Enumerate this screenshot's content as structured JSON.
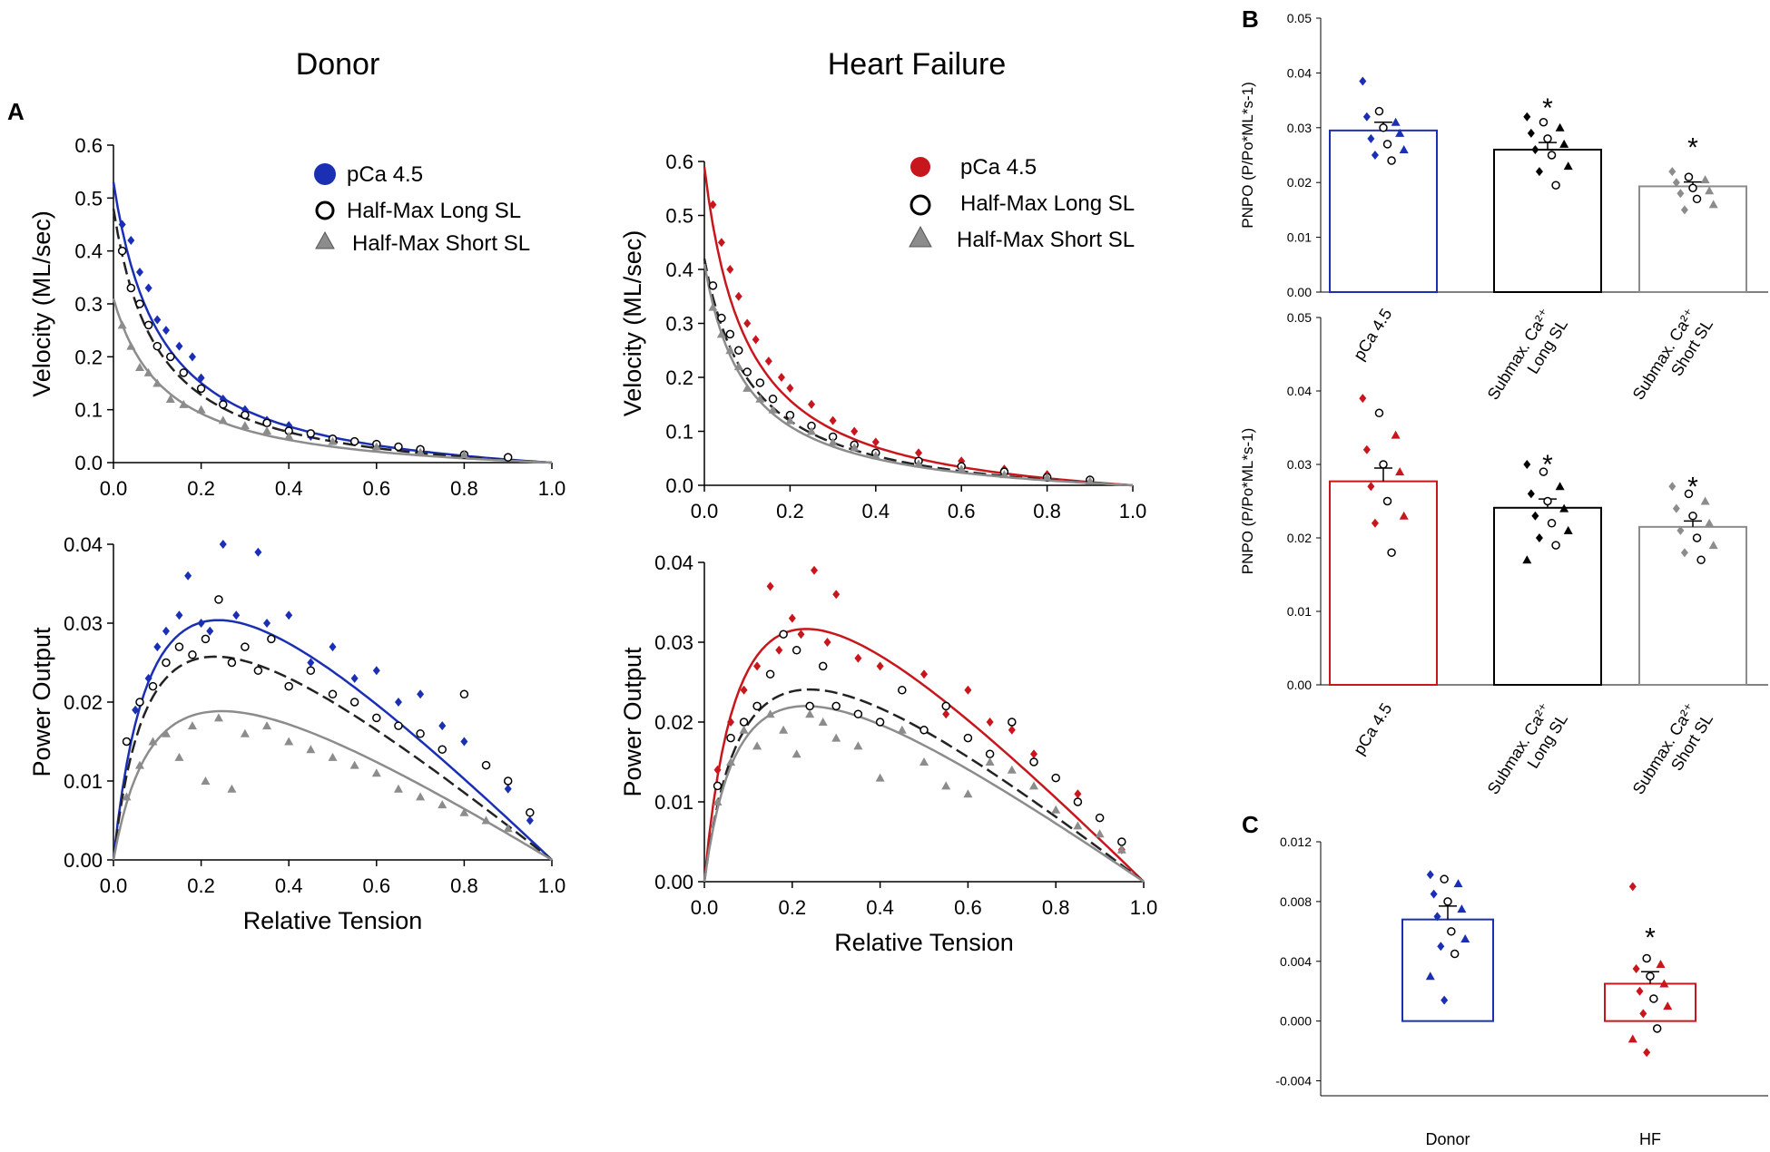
{
  "figure": {
    "col_titles": [
      "Donor",
      "Heart Failure"
    ],
    "panel_labels": [
      "A",
      "B",
      "C"
    ]
  },
  "colors": {
    "donor": "#1a2fb4",
    "hf": "#c8161d",
    "half_long": "#000000",
    "half_short": "#8c8c8c"
  },
  "chart_data": [
    {
      "id": "donor-velocity",
      "type": "scatter",
      "title": "Donor",
      "xlabel": "",
      "ylabel": "Velocity (ML/sec)",
      "xlim": [
        0,
        1
      ],
      "ylim": [
        0,
        0.6
      ],
      "xticks": [
        "0.0",
        "0.2",
        "0.4",
        "0.6",
        "0.8",
        "1.0"
      ],
      "yticks": [
        "0.0",
        "0.1",
        "0.2",
        "0.3",
        "0.4",
        "0.5",
        "0.6"
      ],
      "legend": [
        "pCa 4.5",
        "Half-Max Long SL",
        "Half-Max Short SL"
      ],
      "series": [
        {
          "name": "pCa 4.5",
          "color_key": "donor",
          "marker": "diamond",
          "fit": {
            "v0": 0.53,
            "a": 0.11
          },
          "x": [
            0.02,
            0.04,
            0.06,
            0.08,
            0.1,
            0.12,
            0.15,
            0.18,
            0.2,
            0.25,
            0.3,
            0.35,
            0.4,
            0.45,
            0.5,
            0.6,
            0.7,
            0.8,
            0.9
          ],
          "y": [
            0.45,
            0.42,
            0.36,
            0.33,
            0.27,
            0.25,
            0.22,
            0.2,
            0.16,
            0.12,
            0.1,
            0.08,
            0.07,
            0.05,
            0.045,
            0.035,
            0.025,
            0.015,
            0.01
          ]
        },
        {
          "name": "Half-Max Long SL",
          "color_key": "half_long",
          "marker": "circle",
          "fit": {
            "v0": 0.48,
            "a": 0.1
          },
          "x": [
            0.02,
            0.04,
            0.06,
            0.08,
            0.1,
            0.13,
            0.16,
            0.2,
            0.25,
            0.3,
            0.35,
            0.4,
            0.45,
            0.5,
            0.55,
            0.6,
            0.65,
            0.7,
            0.8,
            0.9
          ],
          "y": [
            0.4,
            0.33,
            0.3,
            0.26,
            0.22,
            0.2,
            0.17,
            0.14,
            0.11,
            0.09,
            0.075,
            0.06,
            0.055,
            0.045,
            0.04,
            0.035,
            0.03,
            0.025,
            0.015,
            0.01
          ]
        },
        {
          "name": "Half-Max Short SL",
          "color_key": "half_short",
          "marker": "triangle",
          "fit": {
            "v0": 0.31,
            "a": 0.12
          },
          "x": [
            0.02,
            0.04,
            0.06,
            0.08,
            0.1,
            0.13,
            0.16,
            0.2,
            0.25,
            0.3,
            0.35,
            0.4,
            0.5,
            0.6,
            0.7,
            0.8
          ],
          "y": [
            0.26,
            0.22,
            0.18,
            0.17,
            0.15,
            0.12,
            0.11,
            0.1,
            0.08,
            0.07,
            0.06,
            0.05,
            0.04,
            0.03,
            0.02,
            0.015
          ]
        }
      ]
    },
    {
      "id": "hf-velocity",
      "type": "scatter",
      "title": "Heart Failure",
      "xlabel": "",
      "ylabel": "Velocity (ML/sec)",
      "xlim": [
        0,
        1
      ],
      "ylim": [
        0,
        0.6
      ],
      "xticks": [
        "0.0",
        "0.2",
        "0.4",
        "0.6",
        "0.8",
        "1.0"
      ],
      "yticks": [
        "0.0",
        "0.1",
        "0.2",
        "0.3",
        "0.4",
        "0.5",
        "0.6"
      ],
      "legend": [
        "pCa 4.5",
        "Half-Max Long SL",
        "Half-Max Short SL"
      ],
      "series": [
        {
          "name": "pCa 4.5",
          "color_key": "hf",
          "marker": "diamond",
          "fit": {
            "v0": 0.59,
            "a": 0.1
          },
          "x": [
            0.02,
            0.04,
            0.06,
            0.08,
            0.1,
            0.12,
            0.15,
            0.18,
            0.2,
            0.25,
            0.3,
            0.35,
            0.4,
            0.5,
            0.6,
            0.7,
            0.8,
            0.9
          ],
          "y": [
            0.52,
            0.45,
            0.4,
            0.35,
            0.3,
            0.27,
            0.23,
            0.2,
            0.18,
            0.15,
            0.12,
            0.1,
            0.08,
            0.06,
            0.045,
            0.03,
            0.02,
            0.01
          ]
        },
        {
          "name": "Half-Max Long SL",
          "color_key": "half_long",
          "marker": "circle",
          "fit": {
            "v0": 0.42,
            "a": 0.11
          },
          "x": [
            0.02,
            0.04,
            0.06,
            0.08,
            0.1,
            0.13,
            0.16,
            0.2,
            0.25,
            0.3,
            0.35,
            0.4,
            0.5,
            0.6,
            0.7,
            0.8,
            0.9
          ],
          "y": [
            0.37,
            0.31,
            0.28,
            0.25,
            0.21,
            0.19,
            0.16,
            0.13,
            0.11,
            0.09,
            0.075,
            0.06,
            0.045,
            0.035,
            0.025,
            0.015,
            0.01
          ]
        },
        {
          "name": "Half-Max Short SL",
          "color_key": "half_short",
          "marker": "triangle",
          "fit": {
            "v0": 0.41,
            "a": 0.1
          },
          "x": [
            0.02,
            0.04,
            0.06,
            0.08,
            0.1,
            0.13,
            0.16,
            0.2,
            0.25,
            0.3,
            0.35,
            0.4,
            0.5,
            0.6,
            0.7,
            0.8,
            0.9
          ],
          "y": [
            0.33,
            0.28,
            0.25,
            0.22,
            0.18,
            0.16,
            0.14,
            0.12,
            0.1,
            0.08,
            0.07,
            0.055,
            0.04,
            0.03,
            0.02,
            0.015,
            0.008
          ]
        }
      ]
    },
    {
      "id": "donor-power",
      "type": "scatter",
      "title": "",
      "xlabel": "Relative Tension",
      "ylabel": "Power Output",
      "xlim": [
        0,
        1
      ],
      "ylim": [
        0,
        0.04
      ],
      "xticks": [
        "0.0",
        "0.2",
        "0.4",
        "0.6",
        "0.8",
        "1.0"
      ],
      "yticks": [
        "0.00",
        "0.01",
        "0.02",
        "0.03",
        "0.04"
      ],
      "series": [
        {
          "name": "pCa 4.5",
          "color_key": "donor",
          "marker": "diamond",
          "fit": {
            "v0": 0.53,
            "a": 0.11
          },
          "x": [
            0.05,
            0.08,
            0.1,
            0.12,
            0.15,
            0.17,
            0.2,
            0.22,
            0.25,
            0.28,
            0.3,
            0.33,
            0.35,
            0.4,
            0.45,
            0.5,
            0.55,
            0.6,
            0.65,
            0.7,
            0.75,
            0.8,
            0.85,
            0.9,
            0.95
          ],
          "y": [
            0.019,
            0.023,
            0.027,
            0.029,
            0.031,
            0.036,
            0.03,
            0.029,
            0.04,
            0.031,
            0.027,
            0.039,
            0.03,
            0.031,
            0.025,
            0.027,
            0.023,
            0.024,
            0.02,
            0.021,
            0.017,
            0.015,
            0.012,
            0.009,
            0.005
          ]
        },
        {
          "name": "Half-Max Long SL",
          "color_key": "half_long",
          "marker": "circle",
          "fit": {
            "v0": 0.48,
            "a": 0.1
          },
          "x": [
            0.03,
            0.06,
            0.09,
            0.12,
            0.15,
            0.18,
            0.21,
            0.24,
            0.27,
            0.3,
            0.33,
            0.36,
            0.4,
            0.45,
            0.5,
            0.55,
            0.6,
            0.65,
            0.7,
            0.75,
            0.8,
            0.85,
            0.9,
            0.95
          ],
          "y": [
            0.015,
            0.02,
            0.022,
            0.025,
            0.027,
            0.026,
            0.028,
            0.033,
            0.025,
            0.027,
            0.024,
            0.028,
            0.022,
            0.024,
            0.021,
            0.02,
            0.018,
            0.017,
            0.016,
            0.014,
            0.021,
            0.012,
            0.01,
            0.006
          ]
        },
        {
          "name": "Half-Max Short SL",
          "color_key": "half_short",
          "marker": "triangle",
          "fit": {
            "v0": 0.31,
            "a": 0.12
          },
          "x": [
            0.03,
            0.06,
            0.09,
            0.12,
            0.15,
            0.18,
            0.21,
            0.24,
            0.27,
            0.3,
            0.35,
            0.4,
            0.45,
            0.5,
            0.55,
            0.6,
            0.65,
            0.7,
            0.75,
            0.8,
            0.85,
            0.9
          ],
          "y": [
            0.008,
            0.012,
            0.015,
            0.016,
            0.013,
            0.017,
            0.01,
            0.018,
            0.009,
            0.016,
            0.017,
            0.015,
            0.014,
            0.013,
            0.012,
            0.011,
            0.009,
            0.008,
            0.007,
            0.006,
            0.005,
            0.004
          ]
        }
      ]
    },
    {
      "id": "hf-power",
      "type": "scatter",
      "title": "",
      "xlabel": "Relative Tension",
      "ylabel": "Power Output",
      "xlim": [
        0,
        1
      ],
      "ylim": [
        0,
        0.04
      ],
      "xticks": [
        "0.0",
        "0.2",
        "0.4",
        "0.6",
        "0.8",
        "1.0"
      ],
      "yticks": [
        "0.00",
        "0.01",
        "0.02",
        "0.03",
        "0.04"
      ],
      "series": [
        {
          "name": "pCa 4.5",
          "color_key": "hf",
          "marker": "diamond",
          "fit": {
            "v0": 0.59,
            "a": 0.1
          },
          "x": [
            0.03,
            0.06,
            0.09,
            0.12,
            0.15,
            0.17,
            0.2,
            0.22,
            0.25,
            0.28,
            0.3,
            0.35,
            0.4,
            0.45,
            0.5,
            0.55,
            0.6,
            0.65,
            0.7,
            0.75,
            0.8,
            0.85,
            0.9,
            0.95
          ],
          "y": [
            0.014,
            0.02,
            0.024,
            0.027,
            0.037,
            0.029,
            0.033,
            0.031,
            0.039,
            0.03,
            0.036,
            0.028,
            0.027,
            0.024,
            0.026,
            0.021,
            0.024,
            0.02,
            0.019,
            0.016,
            0.013,
            0.011,
            0.008,
            0.004
          ]
        },
        {
          "name": "Half-Max Long SL",
          "color_key": "half_long",
          "marker": "circle",
          "fit": {
            "v0": 0.42,
            "a": 0.11
          },
          "x": [
            0.03,
            0.06,
            0.09,
            0.12,
            0.15,
            0.18,
            0.21,
            0.24,
            0.27,
            0.3,
            0.35,
            0.4,
            0.45,
            0.5,
            0.55,
            0.6,
            0.65,
            0.7,
            0.75,
            0.8,
            0.85,
            0.9,
            0.95
          ],
          "y": [
            0.012,
            0.018,
            0.02,
            0.022,
            0.026,
            0.031,
            0.029,
            0.022,
            0.027,
            0.022,
            0.021,
            0.02,
            0.024,
            0.019,
            0.022,
            0.018,
            0.016,
            0.02,
            0.015,
            0.013,
            0.01,
            0.008,
            0.005
          ]
        },
        {
          "name": "Half-Max Short SL",
          "color_key": "half_short",
          "marker": "triangle",
          "fit": {
            "v0": 0.41,
            "a": 0.1
          },
          "x": [
            0.03,
            0.06,
            0.09,
            0.12,
            0.15,
            0.18,
            0.21,
            0.24,
            0.27,
            0.3,
            0.35,
            0.4,
            0.45,
            0.5,
            0.55,
            0.6,
            0.65,
            0.7,
            0.75,
            0.8,
            0.85,
            0.9,
            0.95
          ],
          "y": [
            0.01,
            0.015,
            0.019,
            0.017,
            0.021,
            0.019,
            0.016,
            0.021,
            0.02,
            0.018,
            0.017,
            0.013,
            0.019,
            0.015,
            0.012,
            0.011,
            0.015,
            0.014,
            0.012,
            0.009,
            0.007,
            0.006,
            0.004
          ]
        }
      ]
    },
    {
      "id": "pnpo-donor",
      "type": "bar",
      "ylabel": "PNPO (P/Po*ML*s-1)",
      "ylim": [
        0,
        0.05
      ],
      "yticks": [
        "0.00",
        "0.01",
        "0.02",
        "0.03",
        "0.04",
        "0.05"
      ],
      "categories": [
        "pCa 4.5",
        "Submax. Ca2+ Long SL",
        "Submax. Ca2+ Short SL"
      ],
      "category_lines": [
        [
          "pCa 4.5"
        ],
        [
          "Submax. Ca²⁺",
          "Long SL"
        ],
        [
          "Submax. Ca²⁺",
          "Short SL"
        ]
      ],
      "values": [
        0.0295,
        0.026,
        0.0193
      ],
      "errors": [
        0.0015,
        0.0013,
        0.0008
      ],
      "significant": [
        "",
        "*",
        "*"
      ],
      "bar_colors": [
        "#1a2fb4",
        "#000000",
        "#8c8c8c"
      ],
      "points": [
        [
          0.0385,
          0.033,
          0.031,
          0.032,
          0.03,
          0.029,
          0.028,
          0.027,
          0.026,
          0.025,
          0.024
        ],
        [
          0.032,
          0.031,
          0.03,
          0.029,
          0.028,
          0.027,
          0.026,
          0.025,
          0.023,
          0.022,
          0.0195
        ],
        [
          0.022,
          0.021,
          0.0205,
          0.02,
          0.019,
          0.0185,
          0.018,
          0.017,
          0.016,
          0.015
        ]
      ]
    },
    {
      "id": "pnpo-hf",
      "type": "bar",
      "ylabel": "PNPO (P/Po*ML*s-1)",
      "ylim": [
        0,
        0.05
      ],
      "yticks": [
        "0.00",
        "0.01",
        "0.02",
        "0.03",
        "0.04",
        "0.05"
      ],
      "categories": [
        "pCa 4.5",
        "Submax. Ca2+ Long SL",
        "Submax. Ca2+ Short SL"
      ],
      "category_lines": [
        [
          "pCa 4.5"
        ],
        [
          "Submax. Ca²⁺",
          "Long SL"
        ],
        [
          "Submax. Ca²⁺",
          "Short SL"
        ]
      ],
      "values": [
        0.0277,
        0.0241,
        0.0215
      ],
      "errors": [
        0.0018,
        0.0012,
        0.0008
      ],
      "significant": [
        "",
        "*",
        "*"
      ],
      "bar_colors": [
        "#c8161d",
        "#000000",
        "#8c8c8c"
      ],
      "points": [
        [
          0.039,
          0.037,
          0.034,
          0.032,
          0.03,
          0.029,
          0.027,
          0.025,
          0.023,
          0.022,
          0.018
        ],
        [
          0.03,
          0.029,
          0.027,
          0.026,
          0.025,
          0.024,
          0.023,
          0.022,
          0.021,
          0.02,
          0.019,
          0.017
        ],
        [
          0.027,
          0.026,
          0.025,
          0.024,
          0.023,
          0.022,
          0.021,
          0.02,
          0.019,
          0.018,
          0.017
        ]
      ]
    },
    {
      "id": "pnpo-diff",
      "type": "bar",
      "ylabel": "",
      "ylim": [
        -0.005,
        0.012
      ],
      "yticks": [
        "-0.004",
        "0.000",
        "0.004",
        "0.008",
        "0.012"
      ],
      "ytick_values": [
        -0.004,
        0.0,
        0.004,
        0.008,
        0.012
      ],
      "categories": [
        "Donor",
        "HF"
      ],
      "values": [
        0.0068,
        0.0025
      ],
      "errors": [
        0.0009,
        0.0008
      ],
      "significant": [
        "",
        "*"
      ],
      "bar_colors": [
        "#1a2fb4",
        "#c8161d"
      ],
      "points": [
        [
          0.0098,
          0.0095,
          0.0092,
          0.0085,
          0.008,
          0.0075,
          0.007,
          0.006,
          0.0055,
          0.005,
          0.0045,
          0.003,
          0.0014
        ],
        [
          0.009,
          0.0042,
          0.0038,
          0.0035,
          0.003,
          0.0025,
          0.002,
          0.0015,
          0.001,
          0.0005,
          -0.0005,
          -0.0012,
          -0.0021
        ]
      ]
    }
  ]
}
